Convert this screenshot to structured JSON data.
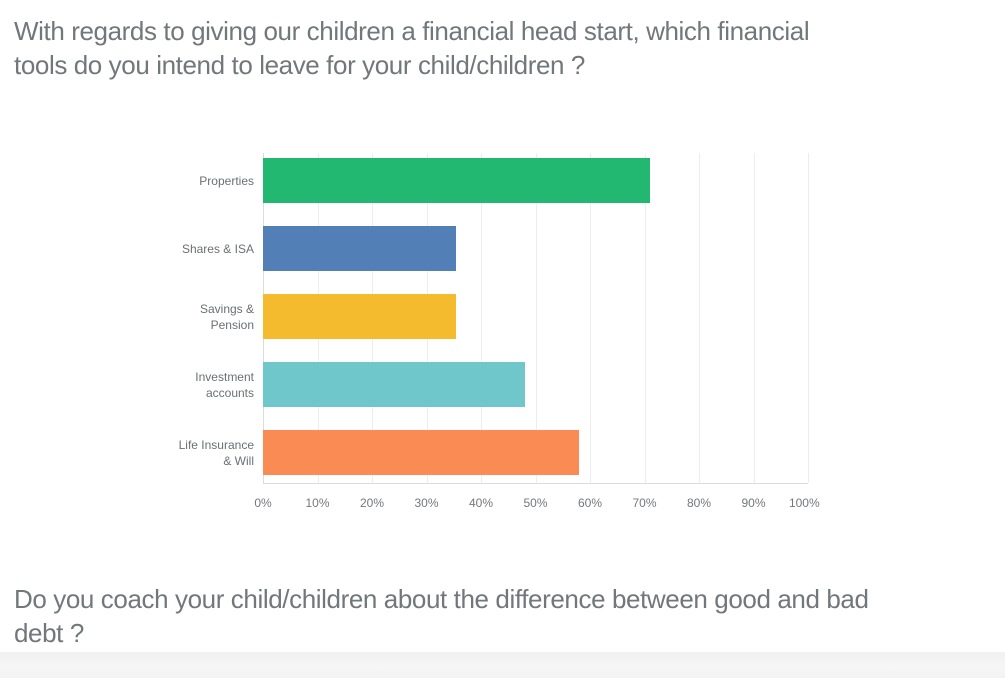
{
  "questions": [
    {
      "text": "With regards to giving our children a financial head start, which financial tools do you intend to leave for your child/children ?",
      "lines": [
        "With regards to giving our children a financial head start, which financial",
        "tools do you intend to leave for your child/children ?"
      ]
    },
    {
      "text": "Do you coach your child/children about the difference between good and bad debt ?",
      "lines": [
        "Do you coach your child/children about the difference between good and bad",
        "debt ?"
      ]
    }
  ],
  "chart_data": {
    "type": "bar",
    "orientation": "horizontal",
    "title": "",
    "categories": [
      "Properties",
      "Shares & ISA",
      "Savings & Pension",
      "Investment accounts",
      "Life Insurance & Will"
    ],
    "category_label_lines": [
      [
        "Properties"
      ],
      [
        "Shares & ISA"
      ],
      [
        "Savings &",
        "Pension"
      ],
      [
        "Investment",
        "accounts"
      ],
      [
        "Life Insurance",
        "& Will"
      ]
    ],
    "values": [
      71,
      35.5,
      35.5,
      48,
      58
    ],
    "unit": "%",
    "bar_colors": [
      "#22b872",
      "#527fb5",
      "#f5bb2e",
      "#6fc7cc",
      "#fa8b55"
    ],
    "x_ticks": [
      "0%",
      "10%",
      "20%",
      "30%",
      "40%",
      "50%",
      "60%",
      "70%",
      "80%",
      "90%",
      "100%"
    ],
    "xlim": [
      0,
      100
    ],
    "grid": "vertical",
    "legend": "none"
  },
  "colors": {
    "heading_text": "#72777b",
    "category_text": "#6b7074",
    "tick_text": "#74787c",
    "gridline": "#ededed",
    "axis": "#dcdcdc",
    "bottom_band": "#f3f3f3"
  }
}
